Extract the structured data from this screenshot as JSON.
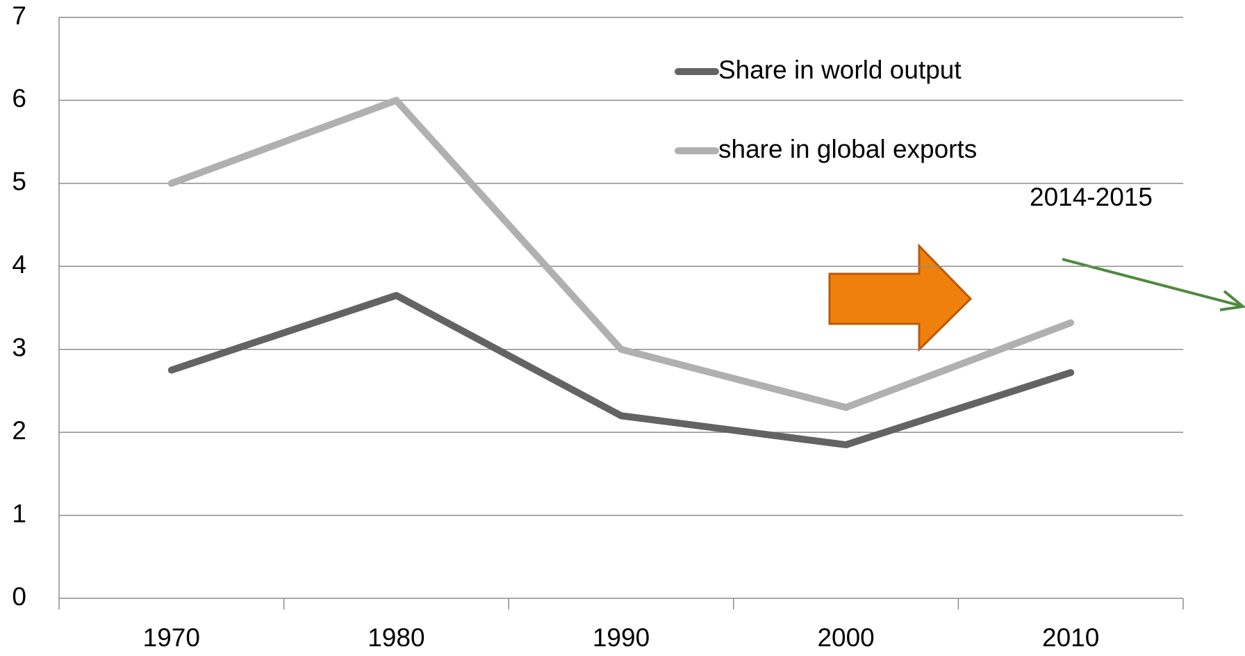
{
  "chart_data": {
    "type": "line",
    "categories": [
      "1970",
      "1980",
      "1990",
      "2000",
      "2010"
    ],
    "series": [
      {
        "name": "Share in world output",
        "color": "#636363",
        "values": [
          2.75,
          3.65,
          2.2,
          1.85,
          2.72
        ]
      },
      {
        "name": "share in global exports",
        "color": "#b0b0b0",
        "values": [
          5.0,
          6.0,
          3.0,
          2.3,
          3.32
        ]
      }
    ],
    "ylim": [
      0,
      7
    ],
    "yticks": [
      0,
      1,
      2,
      3,
      4,
      5,
      6,
      7
    ],
    "grid": true,
    "annotations": [
      "2014-2015"
    ]
  }
}
